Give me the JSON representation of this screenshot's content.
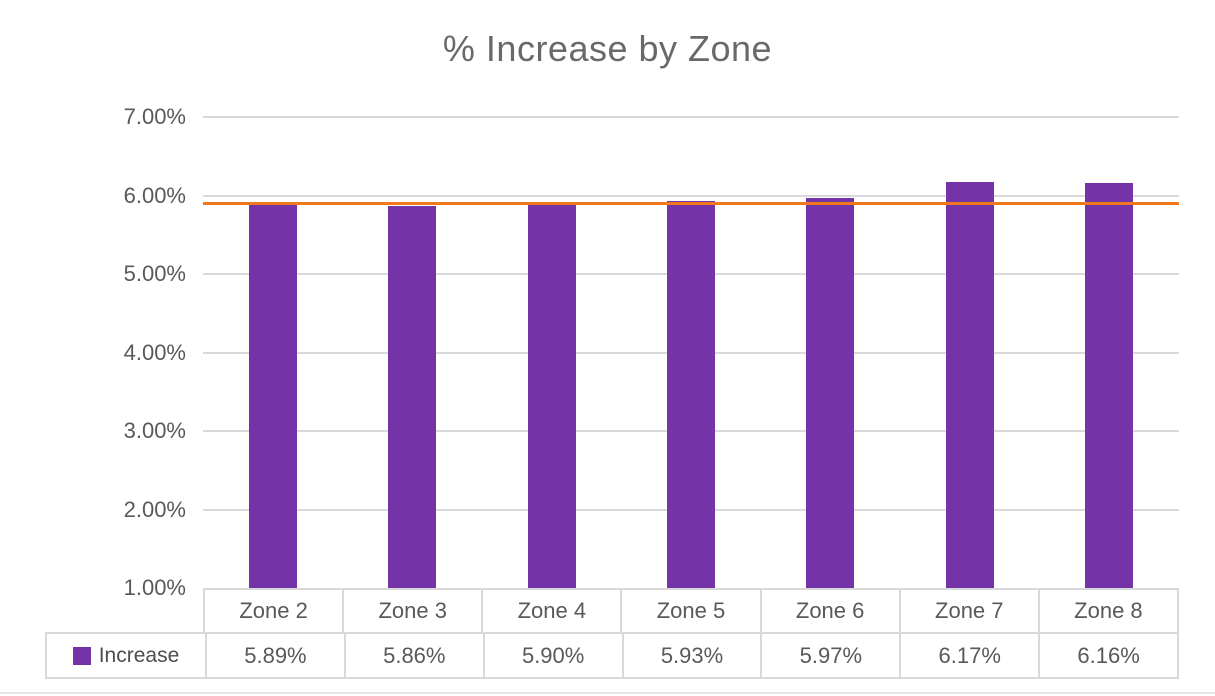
{
  "chart_data": {
    "type": "bar",
    "title": "% Increase by Zone",
    "categories": [
      "Zone 2",
      "Zone 3",
      "Zone 4",
      "Zone 5",
      "Zone 6",
      "Zone 7",
      "Zone 8"
    ],
    "series": [
      {
        "name": "Increase",
        "values": [
          5.89,
          5.86,
          5.9,
          5.93,
          5.97,
          6.17,
          6.16
        ]
      }
    ],
    "value_labels": [
      "5.89%",
      "5.86%",
      "5.90%",
      "5.93%",
      "5.97%",
      "6.17%",
      "6.16%"
    ],
    "xlabel": "",
    "ylabel": "",
    "ylim": [
      1.0,
      7.0
    ],
    "y_ticks": [
      {
        "value": 7.0,
        "label": "7.00%"
      },
      {
        "value": 6.0,
        "label": "6.00%"
      },
      {
        "value": 5.0,
        "label": "5.00%"
      },
      {
        "value": 4.0,
        "label": "4.00%"
      },
      {
        "value": 3.0,
        "label": "3.00%"
      },
      {
        "value": 2.0,
        "label": "2.00%"
      },
      {
        "value": 1.0,
        "label": "1.00%"
      }
    ],
    "grid": true,
    "legend_position": "bottom-table",
    "reference_line": {
      "value": 5.91,
      "color": "#f0791e"
    },
    "colors": {
      "bar": "#7433a6",
      "reference_line": "#f0791e",
      "gridline": "#d9d9de",
      "text": "#595959",
      "title_text": "#696969",
      "table_border": "#d9d9d9"
    }
  }
}
